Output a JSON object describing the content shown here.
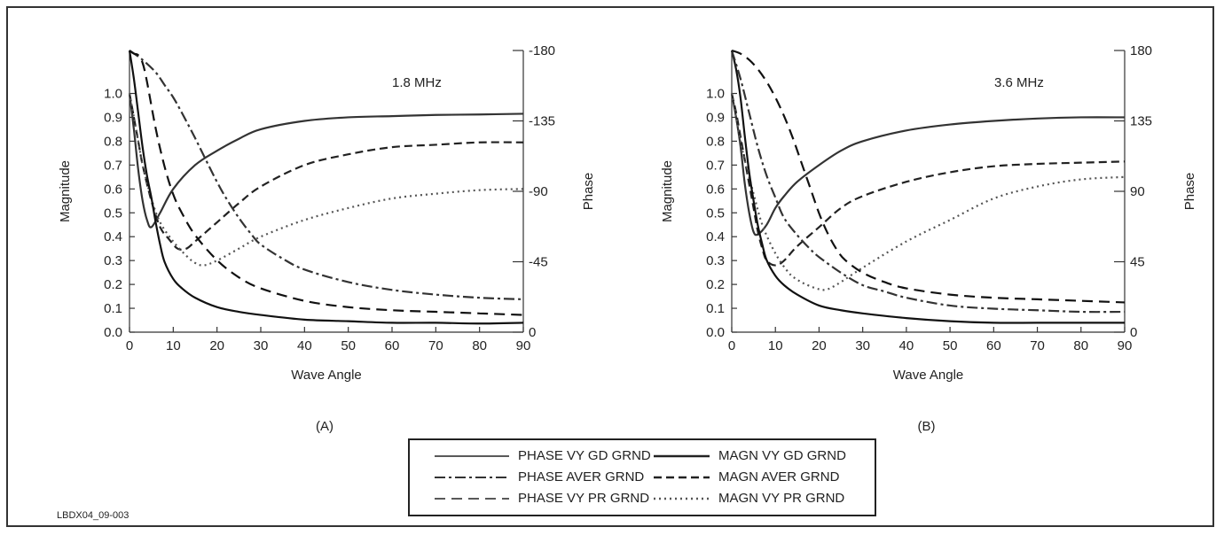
{
  "credit": "LBDX04_09-003",
  "legend": {
    "entries": [
      {
        "label": "PHASE VY GD GRND",
        "style": "solid-thin"
      },
      {
        "label": "MAGN VY GD GRND",
        "style": "solid-thick"
      },
      {
        "label": "PHASE AVER GRND",
        "style": "dashdot"
      },
      {
        "label": "MAGN AVER GRND",
        "style": "dash-thick"
      },
      {
        "label": "PHASE VY PR GRND",
        "style": "dash"
      },
      {
        "label": "MAGN VY PR GRND",
        "style": "dot"
      }
    ]
  },
  "chart_data": [
    {
      "type": "line",
      "panel_label": "(A)",
      "annotation": "1.8 MHz",
      "xlabel": "Wave Angle",
      "ylabel": "Magnitude",
      "y2label": "Phase",
      "xlim": [
        0,
        90
      ],
      "ylim": [
        0,
        1.18
      ],
      "y2lim": [
        0,
        -180
      ],
      "xticks": [
        "0",
        "10",
        "20",
        "30",
        "40",
        "50",
        "60",
        "70",
        "80",
        "90"
      ],
      "yticks": [
        "0.0",
        "0.1",
        "0.2",
        "0.3",
        "0.4",
        "0.5",
        "0.6",
        "0.7",
        "0.8",
        "0.9",
        "1.0"
      ],
      "y2ticks": [
        "0",
        "-45",
        "-90",
        "-135",
        "-180"
      ],
      "series": [
        {
          "name": "MAGN VY GD GRND",
          "axis": "left",
          "style": "solid-thick",
          "x": [
            0,
            1,
            2,
            3,
            4,
            5,
            7,
            10,
            15,
            20,
            25,
            30,
            40,
            50,
            60,
            70,
            80,
            90
          ],
          "y": [
            1.0,
            0.85,
            0.68,
            0.55,
            0.47,
            0.44,
            0.5,
            0.6,
            0.7,
            0.76,
            0.81,
            0.85,
            0.885,
            0.9,
            0.905,
            0.91,
            0.912,
            0.915
          ]
        },
        {
          "name": "MAGN AVER GRND",
          "axis": "left",
          "style": "dash-thick",
          "x": [
            0,
            1,
            2,
            3,
            5,
            7,
            9,
            11,
            13,
            15,
            20,
            25,
            30,
            40,
            50,
            60,
            70,
            80,
            90
          ],
          "y": [
            1.0,
            0.9,
            0.8,
            0.7,
            0.55,
            0.44,
            0.39,
            0.35,
            0.35,
            0.38,
            0.46,
            0.54,
            0.61,
            0.7,
            0.745,
            0.775,
            0.785,
            0.795,
            0.795
          ]
        },
        {
          "name": "MAGN VY PR GRND",
          "axis": "left",
          "style": "dot",
          "x": [
            0,
            1,
            2,
            3,
            5,
            7,
            10,
            13,
            15,
            17,
            20,
            25,
            30,
            40,
            50,
            60,
            70,
            80,
            90
          ],
          "y": [
            1.0,
            0.9,
            0.8,
            0.7,
            0.56,
            0.46,
            0.38,
            0.32,
            0.29,
            0.28,
            0.3,
            0.35,
            0.4,
            0.47,
            0.52,
            0.56,
            0.58,
            0.595,
            0.6
          ]
        },
        {
          "name": "PHASE VY GD GRND",
          "axis": "right",
          "style": "solid-thin",
          "x": [
            0,
            1,
            2,
            3,
            4,
            5,
            6,
            7,
            8,
            10,
            12,
            15,
            20,
            25,
            30,
            40,
            50,
            60,
            70,
            80,
            90
          ],
          "y": [
            -180,
            -162,
            -140,
            -118,
            -100,
            -86,
            -70,
            -56,
            -45,
            -34,
            -28,
            -22,
            -16,
            -13,
            -11,
            -8,
            -7,
            -6,
            -6,
            -5.5,
            -6
          ]
        },
        {
          "name": "PHASE AVER GRND",
          "axis": "right",
          "style": "dashdot",
          "x": [
            0,
            3,
            6,
            8,
            10,
            12,
            15,
            18,
            20,
            22,
            25,
            28,
            30,
            35,
            40,
            50,
            60,
            70,
            80,
            90
          ],
          "y": [
            -180,
            -174,
            -166,
            -158,
            -150,
            -140,
            -124,
            -107,
            -96,
            -86,
            -73,
            -62,
            -56,
            -47,
            -40,
            -32,
            -27,
            -24,
            -22,
            -21
          ]
        },
        {
          "name": "PHASE VY PR GRND",
          "axis": "right",
          "style": "dash",
          "x": [
            0,
            1,
            2,
            3,
            4,
            6,
            8,
            10,
            12,
            15,
            20,
            25,
            30,
            40,
            50,
            60,
            70,
            80,
            90
          ],
          "y": [
            -180,
            -178,
            -177,
            -172,
            -160,
            -130,
            -106,
            -88,
            -76,
            -62,
            -46,
            -35,
            -28,
            -20,
            -16,
            -14,
            -13,
            -12,
            -11
          ]
        }
      ]
    },
    {
      "type": "line",
      "panel_label": "(B)",
      "annotation": "3.6 MHz",
      "xlabel": "Wave Angle",
      "ylabel": "Magnitude",
      "y2label": "Phase",
      "xlim": [
        0,
        90
      ],
      "ylim": [
        0,
        1.18
      ],
      "y2lim": [
        0,
        180
      ],
      "xticks": [
        "0",
        "10",
        "20",
        "30",
        "40",
        "50",
        "60",
        "70",
        "80",
        "90"
      ],
      "yticks": [
        "0.0",
        "0.1",
        "0.2",
        "0.3",
        "0.4",
        "0.5",
        "0.6",
        "0.7",
        "0.8",
        "0.9",
        "1.0"
      ],
      "y2ticks": [
        "0",
        "45",
        "90",
        "135",
        "180"
      ],
      "series": [
        {
          "name": "MAGN VY GD GRND",
          "axis": "left",
          "style": "solid-thick",
          "x": [
            0,
            1,
            2,
            3,
            4,
            5,
            6,
            8,
            10,
            12,
            15,
            20,
            25,
            30,
            40,
            50,
            60,
            70,
            80,
            90
          ],
          "y": [
            1.0,
            0.9,
            0.78,
            0.62,
            0.5,
            0.42,
            0.41,
            0.45,
            0.52,
            0.57,
            0.63,
            0.7,
            0.76,
            0.8,
            0.845,
            0.87,
            0.885,
            0.895,
            0.9,
            0.9
          ]
        },
        {
          "name": "MAGN AVER GRND",
          "axis": "left",
          "style": "dash-thick",
          "x": [
            0,
            1,
            2,
            3,
            5,
            6,
            7,
            8,
            10,
            12,
            15,
            20,
            25,
            30,
            40,
            50,
            60,
            70,
            80,
            90
          ],
          "y": [
            1.0,
            0.92,
            0.82,
            0.72,
            0.52,
            0.42,
            0.35,
            0.3,
            0.28,
            0.3,
            0.36,
            0.44,
            0.52,
            0.57,
            0.63,
            0.67,
            0.695,
            0.705,
            0.71,
            0.715
          ]
        },
        {
          "name": "MAGN VY PR GRND",
          "axis": "left",
          "style": "dot",
          "x": [
            0,
            1,
            2,
            3,
            5,
            7,
            10,
            13,
            15,
            17,
            20,
            22,
            25,
            30,
            40,
            50,
            60,
            70,
            80,
            90
          ],
          "y": [
            1.0,
            0.9,
            0.8,
            0.72,
            0.58,
            0.45,
            0.33,
            0.25,
            0.22,
            0.2,
            0.18,
            0.18,
            0.21,
            0.27,
            0.38,
            0.47,
            0.56,
            0.61,
            0.64,
            0.65
          ]
        },
        {
          "name": "PHASE VY GD GRND",
          "axis": "right",
          "style": "solid-thin",
          "x": [
            0,
            1,
            2,
            3,
            4,
            5,
            6,
            7,
            8,
            10,
            12,
            15,
            20,
            25,
            30,
            40,
            50,
            60,
            70,
            80,
            90
          ],
          "y": [
            180,
            168,
            150,
            125,
            102,
            84,
            68,
            56,
            46,
            36,
            30,
            24,
            17,
            14,
            12,
            9,
            7,
            6,
            6,
            6,
            6
          ]
        },
        {
          "name": "PHASE AVER GRND",
          "axis": "right",
          "style": "dashdot",
          "x": [
            0,
            2,
            4,
            6,
            8,
            10,
            12,
            15,
            18,
            20,
            25,
            30,
            35,
            40,
            50,
            60,
            70,
            80,
            90
          ],
          "y": [
            180,
            162,
            140,
            118,
            100,
            86,
            73,
            62,
            53,
            48,
            38,
            30,
            26,
            22,
            17,
            15,
            14,
            13,
            13
          ]
        },
        {
          "name": "PHASE VY PR GRND",
          "axis": "right",
          "style": "dash",
          "x": [
            0,
            2,
            4,
            6,
            8,
            10,
            12,
            14,
            16,
            18,
            20,
            22,
            24,
            26,
            30,
            35,
            40,
            50,
            60,
            70,
            80,
            90
          ],
          "y": [
            180,
            178,
            174,
            168,
            160,
            150,
            138,
            124,
            108,
            92,
            76,
            63,
            53,
            46,
            38,
            32,
            28,
            24,
            22,
            21,
            20,
            19
          ]
        }
      ]
    }
  ]
}
